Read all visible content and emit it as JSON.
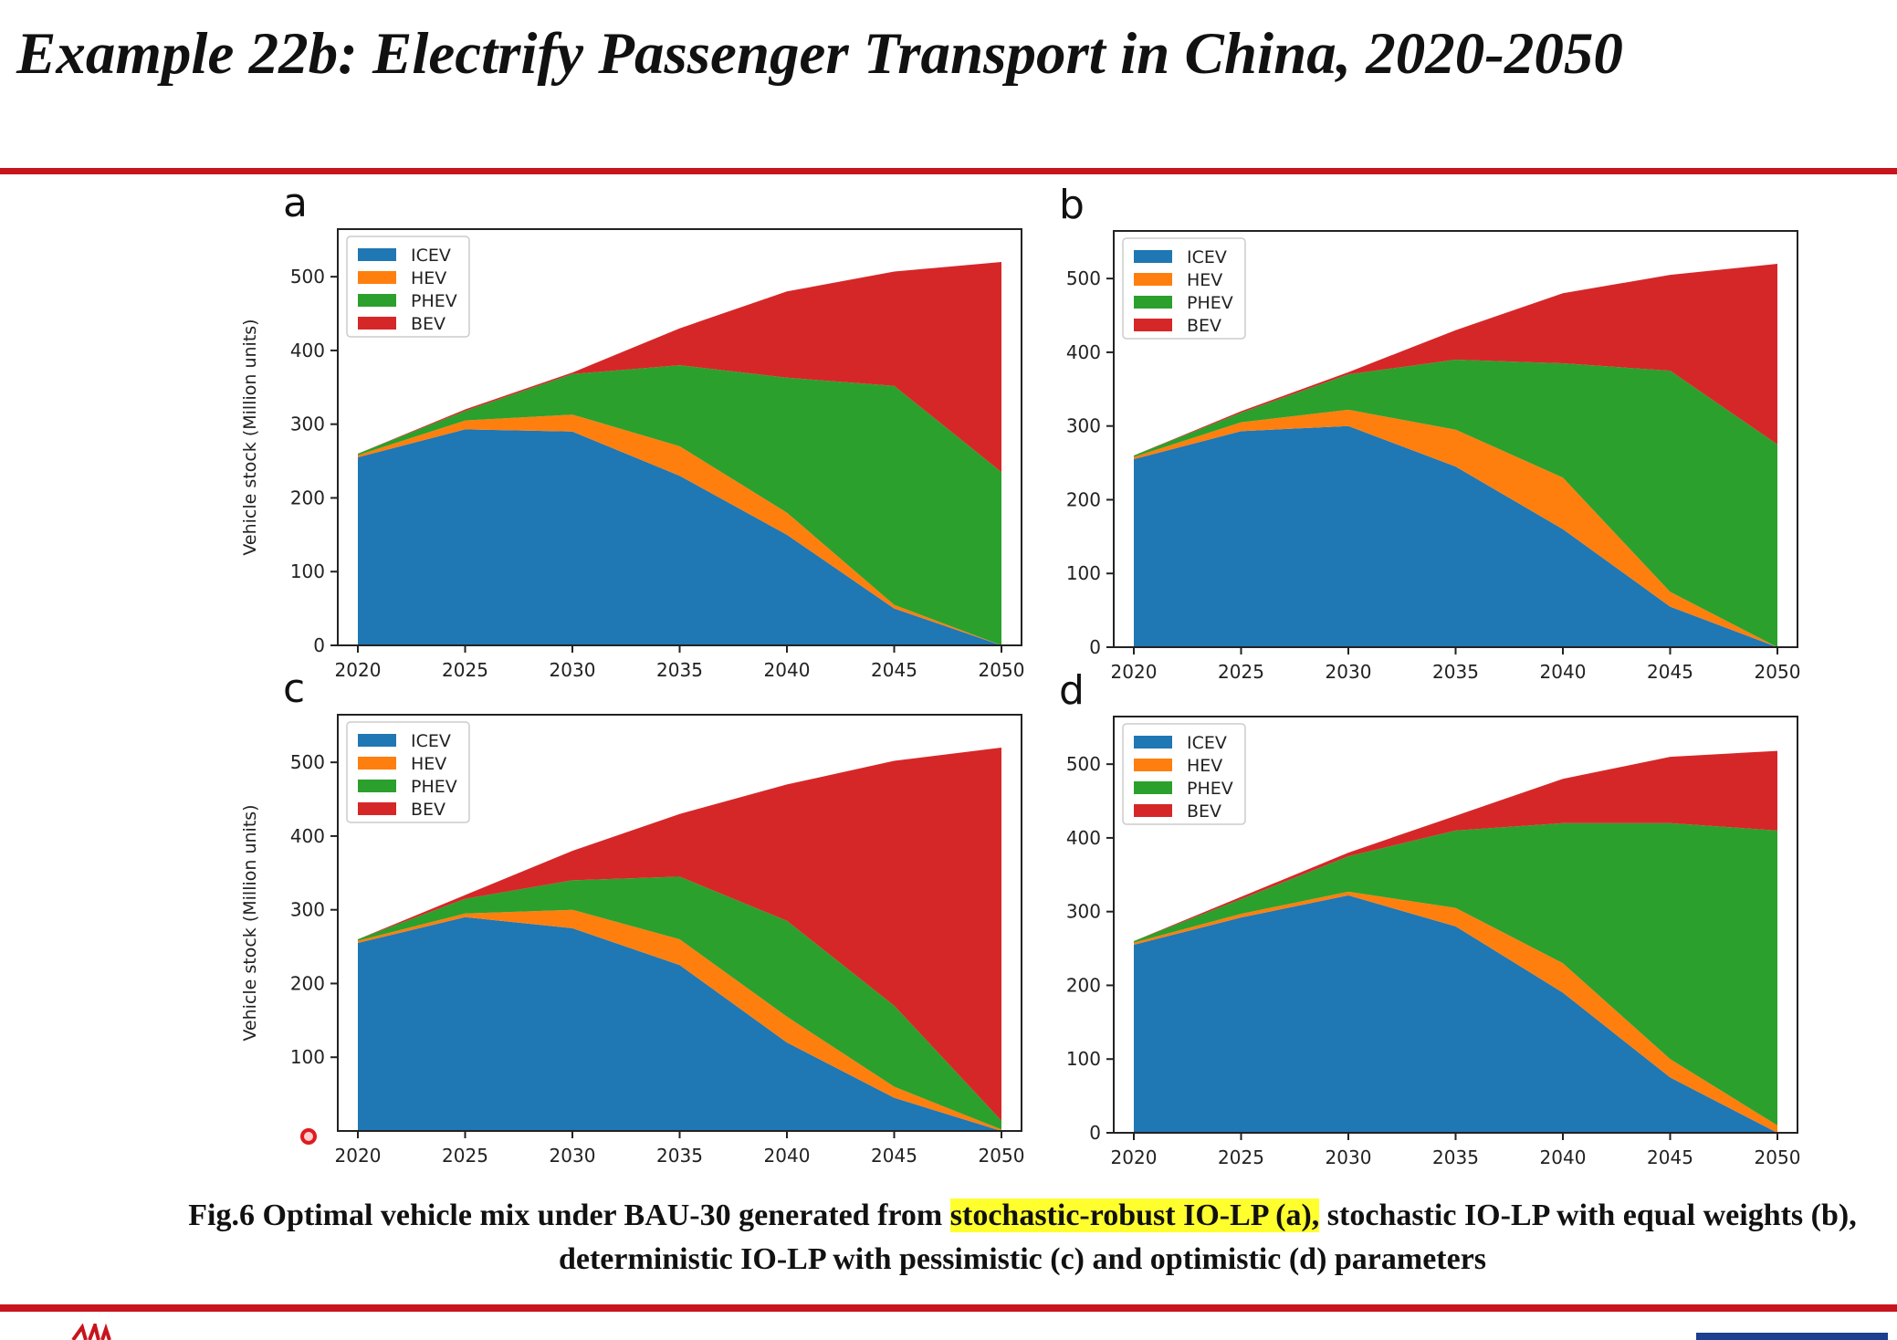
{
  "slide_title": "Example 22b: Electrify Passenger Transport in China, 2020-2050",
  "caption": {
    "part1": "Fig.6 Optimal vehicle mix under BAU-30 generated from ",
    "highlight": "stochastic-robust IO-LP (a),",
    "part2": " stochastic IO-LP with equal weights (b), deterministic IO-LP with pessimistic (c) and optimistic (d) parameters"
  },
  "colors": {
    "ICEV": "#1f77b4",
    "HEV": "#ff7f0e",
    "PHEV": "#2ca02c",
    "BEV": "#d62728",
    "accent_rule": "#c8141c"
  },
  "chart_data": [
    {
      "type": "area",
      "stacked": true,
      "panel_label": "a",
      "ylabel": "Vehicle stock (Million units)",
      "xlim": [
        2020,
        2050
      ],
      "ylim": [
        0,
        520
      ],
      "xticks": [
        2020,
        2025,
        2030,
        2035,
        2040,
        2045,
        2050
      ],
      "yticks": [
        0,
        100,
        200,
        300,
        400,
        500
      ],
      "legend_position": "top-left",
      "grid": false,
      "x": [
        2020,
        2025,
        2030,
        2035,
        2040,
        2045,
        2050
      ],
      "series": [
        {
          "name": "ICEV",
          "values": [
            255,
            293,
            290,
            230,
            150,
            50,
            0
          ]
        },
        {
          "name": "HEV",
          "values": [
            3,
            12,
            23,
            40,
            30,
            5,
            0
          ]
        },
        {
          "name": "PHEV",
          "values": [
            2,
            13,
            55,
            110,
            183,
            297,
            235
          ]
        },
        {
          "name": "BEV",
          "values": [
            0,
            2,
            2,
            50,
            117,
            155,
            285
          ]
        }
      ]
    },
    {
      "type": "area",
      "stacked": true,
      "panel_label": "b",
      "ylabel": "",
      "xlim": [
        2020,
        2050
      ],
      "ylim": [
        0,
        520
      ],
      "xticks": [
        2020,
        2025,
        2030,
        2035,
        2040,
        2045,
        2050
      ],
      "yticks": [
        0,
        100,
        200,
        300,
        400,
        500
      ],
      "legend_position": "top-left",
      "grid": false,
      "x": [
        2020,
        2025,
        2030,
        2035,
        2040,
        2045,
        2050
      ],
      "series": [
        {
          "name": "ICEV",
          "values": [
            255,
            293,
            300,
            245,
            160,
            55,
            0
          ]
        },
        {
          "name": "HEV",
          "values": [
            3,
            12,
            22,
            50,
            70,
            20,
            0
          ]
        },
        {
          "name": "PHEV",
          "values": [
            2,
            13,
            48,
            95,
            155,
            300,
            275
          ]
        },
        {
          "name": "BEV",
          "values": [
            0,
            2,
            3,
            40,
            95,
            130,
            245
          ]
        }
      ]
    },
    {
      "type": "area",
      "stacked": true,
      "panel_label": "c",
      "ylabel": "Vehicle stock (Million units)",
      "xlim": [
        2020,
        2050
      ],
      "ylim": [
        0,
        520
      ],
      "xticks": [
        2020,
        2025,
        2030,
        2035,
        2040,
        2045,
        2050
      ],
      "yticks": [
        100,
        200,
        300,
        400,
        500
      ],
      "legend_position": "top-left",
      "grid": false,
      "x": [
        2020,
        2025,
        2030,
        2035,
        2040,
        2045,
        2050
      ],
      "series": [
        {
          "name": "ICEV",
          "values": [
            255,
            290,
            275,
            225,
            120,
            45,
            0
          ]
        },
        {
          "name": "HEV",
          "values": [
            3,
            5,
            25,
            35,
            35,
            15,
            2
          ]
        },
        {
          "name": "PHEV",
          "values": [
            2,
            20,
            40,
            85,
            130,
            110,
            12
          ]
        },
        {
          "name": "BEV",
          "values": [
            0,
            5,
            40,
            85,
            185,
            332,
            506
          ]
        }
      ]
    },
    {
      "type": "area",
      "stacked": true,
      "panel_label": "d",
      "ylabel": "",
      "xlim": [
        2020,
        2050
      ],
      "ylim": [
        0,
        520
      ],
      "xticks": [
        2020,
        2025,
        2030,
        2035,
        2040,
        2045,
        2050
      ],
      "yticks": [
        0,
        100,
        200,
        300,
        400,
        500
      ],
      "legend_position": "top-left",
      "grid": false,
      "x": [
        2020,
        2025,
        2030,
        2035,
        2040,
        2045,
        2050
      ],
      "series": [
        {
          "name": "ICEV",
          "values": [
            255,
            292,
            322,
            280,
            190,
            75,
            0
          ]
        },
        {
          "name": "HEV",
          "values": [
            3,
            5,
            5,
            25,
            40,
            25,
            10
          ]
        },
        {
          "name": "PHEV",
          "values": [
            2,
            20,
            48,
            105,
            190,
            320,
            400
          ]
        },
        {
          "name": "BEV",
          "values": [
            0,
            3,
            5,
            20,
            60,
            90,
            108
          ]
        }
      ]
    }
  ]
}
